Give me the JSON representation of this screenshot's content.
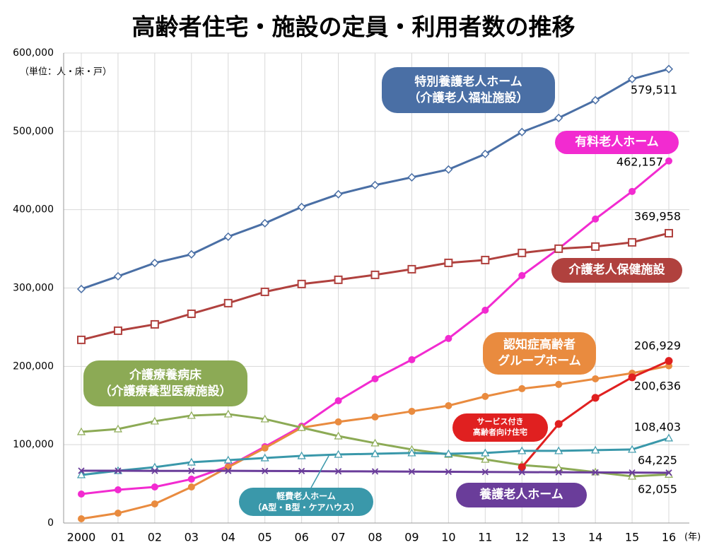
{
  "chart_data": {
    "type": "line",
    "title": "高齢者住宅・施設の定員・利用者数の推移",
    "unit_label": "（単位：人・床・戸）",
    "x_unit": "(年)",
    "categories": [
      "2000",
      "01",
      "02",
      "03",
      "04",
      "05",
      "06",
      "07",
      "08",
      "09",
      "10",
      "11",
      "12",
      "13",
      "14",
      "15",
      "16"
    ],
    "ylim": [
      0,
      600000
    ],
    "yticks": [
      0,
      {
        "value": 100000,
        "label": "100,000"
      },
      {
        "value": 200000,
        "label": "200,000"
      },
      {
        "value": 300000,
        "label": "300,000"
      },
      {
        "value": 400000,
        "label": "400,000"
      },
      {
        "value": 500000,
        "label": "500,000"
      },
      {
        "value": 600000,
        "label": "600,000"
      }
    ],
    "grid": true,
    "series": [
      {
        "name": "特別養護老人ホーム\n（介護老人福祉施設）",
        "color": "#4a6fa5",
        "values": [
          298700,
          315000,
          332000,
          343000,
          365500,
          382700,
          403400,
          419700,
          431400,
          441300,
          451300,
          471100,
          499100,
          517100,
          539700,
          566800,
          579511
        ],
        "value_labels": [
          null,
          null,
          null,
          null,
          null,
          null,
          null,
          null,
          null,
          null,
          null,
          null,
          null,
          null,
          null,
          null,
          "579,511"
        ]
      },
      {
        "name": "有料老人ホーム",
        "color": "#f22bd0",
        "values": [
          37000,
          42400,
          46000,
          56000,
          72200,
          97500,
          123600,
          156100,
          184100,
          208500,
          235600,
          271700,
          315900,
          350200,
          388100,
          423300,
          462157
        ],
        "value_labels": [
          null,
          null,
          null,
          null,
          null,
          null,
          null,
          null,
          null,
          null,
          null,
          null,
          null,
          null,
          null,
          null,
          "462,157"
        ]
      },
      {
        "name": "介護老人保健施設",
        "color": "#b0413e",
        "values": [
          233800,
          245500,
          253600,
          267100,
          280700,
          295100,
          305100,
          310500,
          316800,
          324000,
          332100,
          335700,
          344800,
          350200,
          352900,
          358300,
          369958
        ],
        "value_labels": [
          null,
          null,
          null,
          null,
          null,
          null,
          null,
          null,
          null,
          null,
          null,
          null,
          null,
          null,
          null,
          null,
          "369,958"
        ]
      },
      {
        "name": "認知症高齢者\nグループホーム",
        "color": "#e98b3f",
        "values": [
          5400,
          12600,
          24400,
          46000,
          71300,
          95700,
          121800,
          129100,
          135400,
          142600,
          149800,
          161600,
          171500,
          176900,
          184100,
          191300,
          200636
        ],
        "value_labels": [
          null,
          null,
          null,
          null,
          null,
          null,
          null,
          null,
          null,
          null,
          null,
          null,
          null,
          null,
          null,
          null,
          "200,636"
        ]
      },
      {
        "name": "介護療養病床\n（介護療養型医療施設）",
        "color": "#8caa55",
        "values": [
          116400,
          120000,
          130000,
          137200,
          139000,
          132700,
          121800,
          111000,
          102000,
          93900,
          87500,
          81200,
          74000,
          70400,
          65000,
          59600,
          62055
        ],
        "value_labels": [
          null,
          null,
          null,
          null,
          null,
          null,
          null,
          null,
          null,
          null,
          null,
          null,
          null,
          null,
          null,
          null,
          "62,055"
        ]
      },
      {
        "name": "サービス付き\n高齢者向け住宅",
        "color": "#e02020",
        "values": [
          null,
          null,
          null,
          null,
          null,
          null,
          null,
          null,
          null,
          null,
          null,
          null,
          71300,
          126400,
          159800,
          186000,
          206929
        ],
        "value_labels": [
          null,
          null,
          null,
          null,
          null,
          null,
          null,
          null,
          null,
          null,
          null,
          null,
          null,
          null,
          null,
          null,
          "206,929"
        ]
      },
      {
        "name": "軽費老人ホーム\n（A型・B型・ケアハウス）",
        "color": "#3a98aa",
        "values": [
          61400,
          66800,
          71300,
          77600,
          80300,
          83000,
          85700,
          87500,
          88400,
          89400,
          88400,
          89400,
          92100,
          92100,
          93000,
          93900,
          108403
        ],
        "value_labels": [
          null,
          null,
          null,
          null,
          null,
          null,
          null,
          null,
          null,
          null,
          null,
          null,
          null,
          null,
          null,
          null,
          "108,403"
        ]
      },
      {
        "name": "養護老人ホーム",
        "color": "#6a3d9a",
        "values": [
          66800,
          66800,
          66500,
          66500,
          66600,
          66400,
          66300,
          66000,
          65900,
          65600,
          65400,
          65200,
          65000,
          64800,
          64600,
          64400,
          64225
        ],
        "value_labels": [
          null,
          null,
          null,
          null,
          null,
          null,
          null,
          null,
          null,
          null,
          null,
          null,
          null,
          null,
          null,
          null,
          "64,225"
        ]
      }
    ]
  }
}
